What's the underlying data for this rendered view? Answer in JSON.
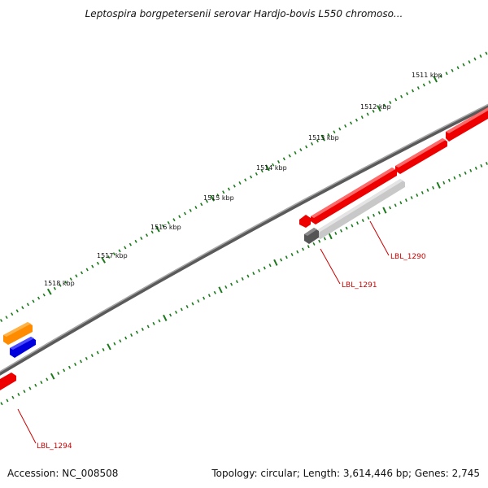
{
  "title": "Leptospira borgpetersenii serovar Hardjo-bovis L550 chromoso...",
  "footer": {
    "accession": "Accession: NC_008508",
    "summary": "Topology: circular; Length: 3,614,446 bp; Genes: 2,745"
  },
  "scale_labels": [
    "1511 kbp",
    "1512 kbp",
    "1513 kbp",
    "1514 kbp",
    "1515 kbp",
    "1516 kbp",
    "1517 kbp",
    "1518 kbp"
  ],
  "gene_labels": [
    "LBL_1290",
    "LBL_1291",
    "LBL_1294"
  ],
  "colors": {
    "backbone": "#7a7a7a",
    "tick": "#1a7a1a",
    "gene_forward": "#ee0000",
    "gene_highlight": "#c8c8c8",
    "gene_dark": "#555555",
    "gene_orange": "#ff8c00",
    "gene_blue": "#0000dd",
    "label": "#cc0000"
  }
}
